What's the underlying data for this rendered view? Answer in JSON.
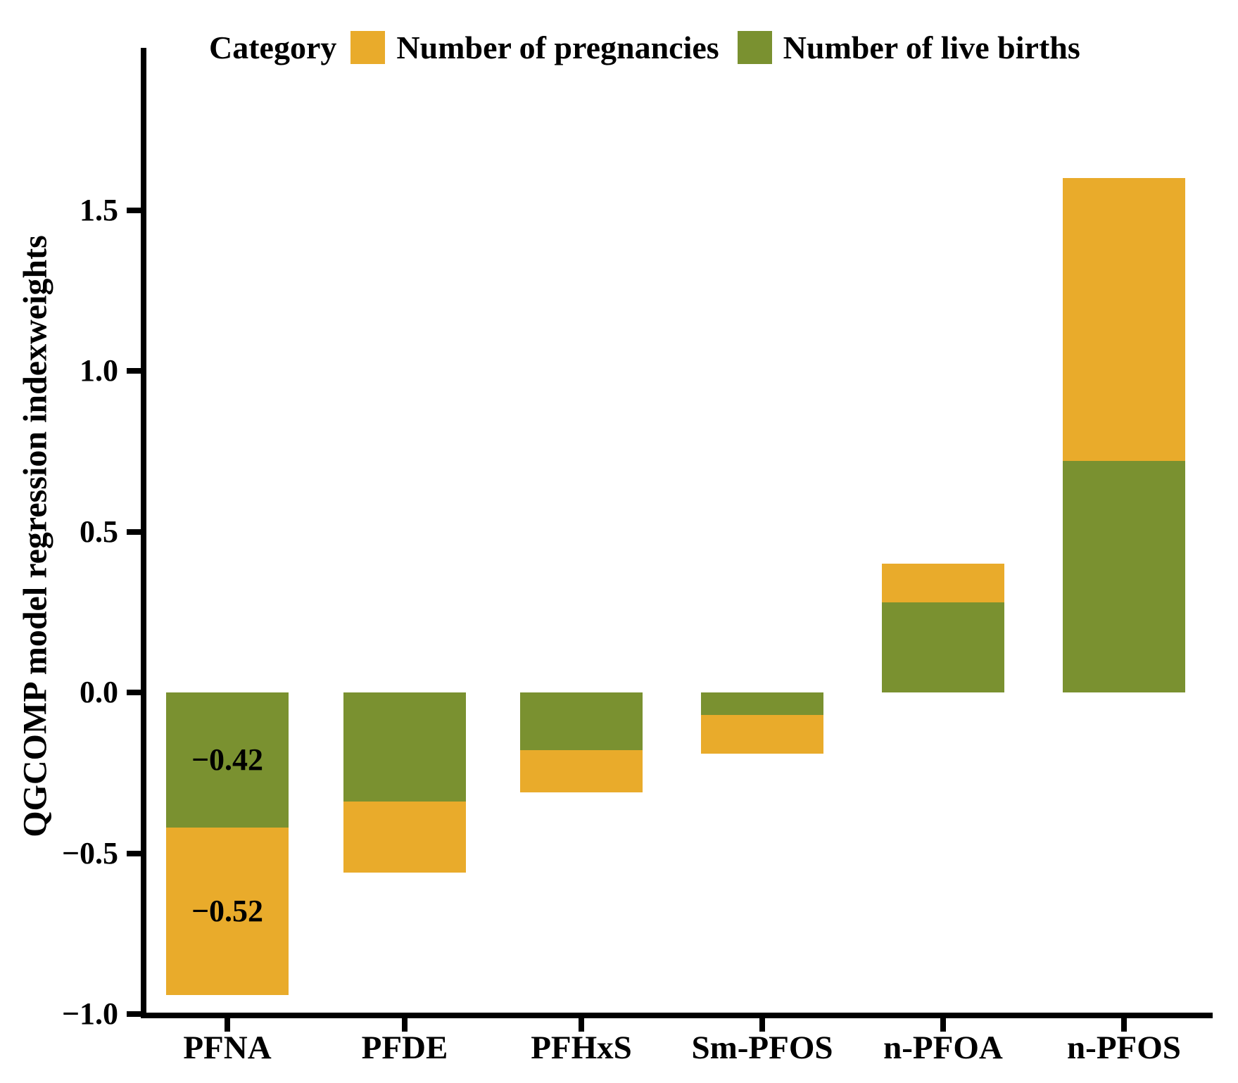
{
  "legend": {
    "title": "Category",
    "items": [
      {
        "label": "Number of pregnancies",
        "color": "#e9ab2b"
      },
      {
        "label": "Number of live births",
        "color": "#7a9130"
      }
    ]
  },
  "chart_data": {
    "type": "bar",
    "variant": "vertical-stacked-diverging",
    "categories": [
      "PFNA",
      "PFDE",
      "PFHxS",
      "Sm-PFOS",
      "n-PFOA",
      "n-PFOS"
    ],
    "series": [
      {
        "name": "Number of live births",
        "color": "#7a9130",
        "stack_position": "adjacent-to-zero",
        "values": [
          -0.42,
          -0.34,
          -0.18,
          -0.07,
          0.28,
          0.72
        ]
      },
      {
        "name": "Number of pregnancies",
        "color": "#e9ab2b",
        "stack_position": "outer",
        "values": [
          -0.52,
          -0.22,
          -0.13,
          -0.12,
          0.12,
          0.88
        ]
      }
    ],
    "bar_totals": [
      -0.94,
      -0.56,
      -0.31,
      -0.19,
      0.4,
      1.6
    ],
    "bar_labels": [
      {
        "category": "PFNA",
        "series": "Number of live births",
        "text": "−0.42"
      },
      {
        "category": "PFNA",
        "series": "Number of pregnancies",
        "text": "−0.52"
      }
    ],
    "title": "",
    "xlabel": "",
    "ylabel": "QGCOMP model regression indexweights",
    "ylim": [
      -1.0,
      2.0
    ],
    "yticks": [
      1.5,
      1.0,
      0.5,
      0.0,
      -0.5,
      -1.0
    ],
    "ytick_labels": [
      "1.5",
      "1.0",
      "0.5",
      "0.0",
      "−0.5",
      "−1.0"
    ],
    "legend_position": "top",
    "grid": false,
    "axis_color": "#000000",
    "background_color": "#ffffff"
  }
}
